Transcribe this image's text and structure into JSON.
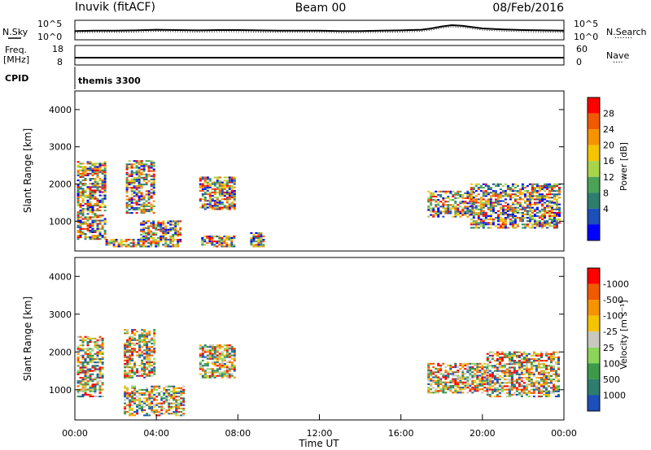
{
  "header": {
    "title": "Inuvik (fitACF)",
    "beam": "Beam 00",
    "date": "08/Feb/2016",
    "cpid": "themis 3300"
  },
  "labels": {
    "nsky": "N.Sky",
    "nsearch": "N.Search",
    "freq_line1": "Freq.",
    "freq_line2": "[MHz]",
    "nave": "Nave",
    "cpid": "CPID",
    "dots1": "·······",
    "dots2": "····"
  },
  "colors": {
    "frame": "#000000",
    "background": "#ffffff"
  },
  "chart_data": [
    {
      "type": "line",
      "name": "noise-panel",
      "left_axis": {
        "label": "N.Sky",
        "ticks": [
          "10^5",
          "10^0"
        ],
        "range": [
          0,
          5
        ],
        "scale": "log"
      },
      "right_axis": {
        "label": "N.Search",
        "ticks": [
          "10^5",
          "10^0"
        ],
        "range": [
          0,
          5
        ],
        "scale": "log"
      },
      "x": [
        0,
        1,
        2,
        3,
        4,
        5,
        6,
        7,
        8,
        9,
        10,
        11,
        12,
        13,
        14,
        15,
        16,
        17,
        17.5,
        18,
        18.5,
        19,
        19.5,
        20,
        21,
        22,
        23,
        24
      ],
      "series": [
        {
          "name": "N.Sky",
          "values": [
            2.2,
            2.3,
            2.3,
            2.4,
            2.6,
            2.5,
            2.4,
            2.5,
            2.5,
            2.4,
            2.3,
            2.3,
            2.3,
            2.2,
            2.2,
            2.3,
            2.4,
            2.6,
            3.0,
            3.6,
            4.0,
            3.8,
            3.4,
            3.0,
            2.7,
            2.5,
            2.4,
            2.3
          ]
        }
      ]
    },
    {
      "type": "line",
      "name": "frequency-panel",
      "left_axis": {
        "label": "Freq. [MHz]",
        "ticks": [
          "18",
          "8"
        ],
        "range": [
          8,
          18
        ]
      },
      "right_axis": {
        "label": "Nave",
        "ticks": [
          "60",
          "0"
        ],
        "range": [
          0,
          60
        ]
      },
      "x": [
        0,
        2,
        4,
        6,
        8,
        10,
        12,
        14,
        16,
        18,
        20,
        22,
        24
      ],
      "series": [
        {
          "name": "Freq.",
          "values": [
            11.5,
            11.5,
            11.5,
            11.5,
            11.5,
            11.5,
            11.5,
            11.5,
            11.5,
            11.5,
            11.5,
            11.5,
            11.5
          ]
        }
      ]
    },
    {
      "type": "heatmap",
      "name": "power-panel",
      "ylabel": "Slant Range [km]",
      "ylim": [
        200,
        4500
      ],
      "yticks": [
        1000,
        2000,
        3000,
        4000
      ],
      "xlim": [
        0,
        24
      ],
      "colorbar": {
        "label": "Power [dB]",
        "ticks": [
          "4",
          "8",
          "12",
          "16",
          "20",
          "24",
          "28"
        ],
        "range": [
          0,
          32
        ],
        "colors": [
          "#0000ff",
          "#1d4fb8",
          "#2e7d6e",
          "#4aa356",
          "#a8d44a",
          "#f5c400",
          "#f59300",
          "#f05a00",
          "#ff0000"
        ]
      },
      "patches": [
        {
          "t0": 0.1,
          "t1": 1.5,
          "r0": 500,
          "r1": 2600
        },
        {
          "t0": 1.5,
          "t1": 3.5,
          "r0": 300,
          "r1": 500
        },
        {
          "t0": 2.5,
          "t1": 3.9,
          "r0": 1200,
          "r1": 2600
        },
        {
          "t0": 3.2,
          "t1": 5.2,
          "r0": 300,
          "r1": 1000
        },
        {
          "t0": 6.1,
          "t1": 7.8,
          "r0": 1300,
          "r1": 2200
        },
        {
          "t0": 6.2,
          "t1": 7.8,
          "r0": 300,
          "r1": 600
        },
        {
          "t0": 8.6,
          "t1": 9.3,
          "r0": 300,
          "r1": 700
        },
        {
          "t0": 17.3,
          "t1": 19.5,
          "r0": 1100,
          "r1": 1800
        },
        {
          "t0": 19.4,
          "t1": 23.8,
          "r0": 800,
          "r1": 2000
        }
      ]
    },
    {
      "type": "heatmap",
      "name": "velocity-panel",
      "ylabel": "Slant Range [km]",
      "ylim": [
        200,
        4500
      ],
      "yticks": [
        1000,
        2000,
        3000,
        4000
      ],
      "xlim": [
        0,
        24
      ],
      "xticks": [
        "00:00",
        "04:00",
        "08:00",
        "12:00",
        "16:00",
        "20:00",
        "00:00"
      ],
      "xlabel": "Time UT",
      "colorbar": {
        "label": "Velocity [m s⁻¹]",
        "ticks": [
          "1000",
          "500",
          "100",
          "25",
          "-25",
          "-100",
          "-500",
          "-1000"
        ],
        "colors": [
          "#1d4fb8",
          "#2e7d6e",
          "#3c9a4a",
          "#8cd45a",
          "#c8c8c0",
          "#f5c400",
          "#f59300",
          "#f05a00",
          "#ff0000"
        ]
      },
      "patches": [
        {
          "t0": 0.1,
          "t1": 1.4,
          "r0": 800,
          "r1": 2400
        },
        {
          "t0": 2.4,
          "t1": 3.9,
          "r0": 1300,
          "r1": 2600
        },
        {
          "t0": 2.4,
          "t1": 5.3,
          "r0": 300,
          "r1": 1100
        },
        {
          "t0": 6.1,
          "t1": 7.8,
          "r0": 1300,
          "r1": 2200
        },
        {
          "t0": 17.3,
          "t1": 20.2,
          "r0": 900,
          "r1": 1700
        },
        {
          "t0": 20.2,
          "t1": 23.8,
          "r0": 800,
          "r1": 2000
        }
      ]
    }
  ]
}
